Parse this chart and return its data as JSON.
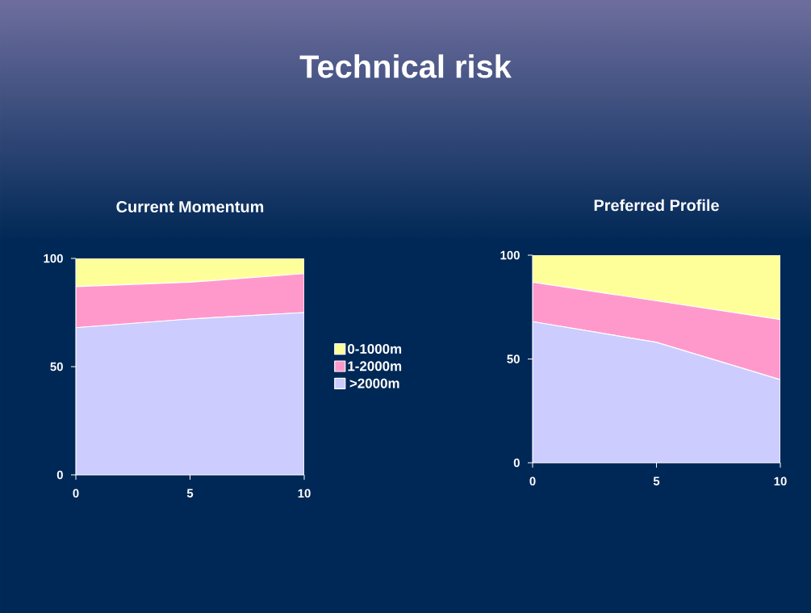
{
  "chart_data": [
    {
      "type": "area",
      "title": "Current Momentum",
      "annotations": [
        "Technical risk"
      ],
      "stacked": true,
      "x": [
        0,
        5,
        10
      ],
      "xlim": [
        0,
        10
      ],
      "xticks": [
        0,
        5,
        10
      ],
      "ylim": [
        0,
        100
      ],
      "yticks": [
        0,
        50,
        100
      ],
      "legend": "right",
      "series": [
        {
          "name": ">2000m",
          "color": "#ccccff",
          "values": [
            68,
            72,
            75
          ]
        },
        {
          "name": "1-2000m",
          "color": "#ff99cc",
          "values": [
            19,
            17,
            18
          ]
        },
        {
          "name": "0-1000m",
          "color": "#ffff99",
          "values": [
            13,
            11,
            7
          ]
        }
      ]
    },
    {
      "type": "area",
      "title": "Preferred Profile",
      "stacked": true,
      "x": [
        0,
        5,
        10
      ],
      "xlim": [
        0,
        10
      ],
      "xticks": [
        0,
        5,
        10
      ],
      "ylim": [
        0,
        100
      ],
      "yticks": [
        0,
        50,
        100
      ],
      "series": [
        {
          "color": "#ccccff",
          "values": [
            68,
            58,
            40
          ]
        },
        {
          "color": "#ff99cc",
          "values": [
            19,
            20,
            29
          ]
        },
        {
          "color": "#ffff99",
          "values": [
            13,
            22,
            31
          ]
        }
      ]
    }
  ]
}
